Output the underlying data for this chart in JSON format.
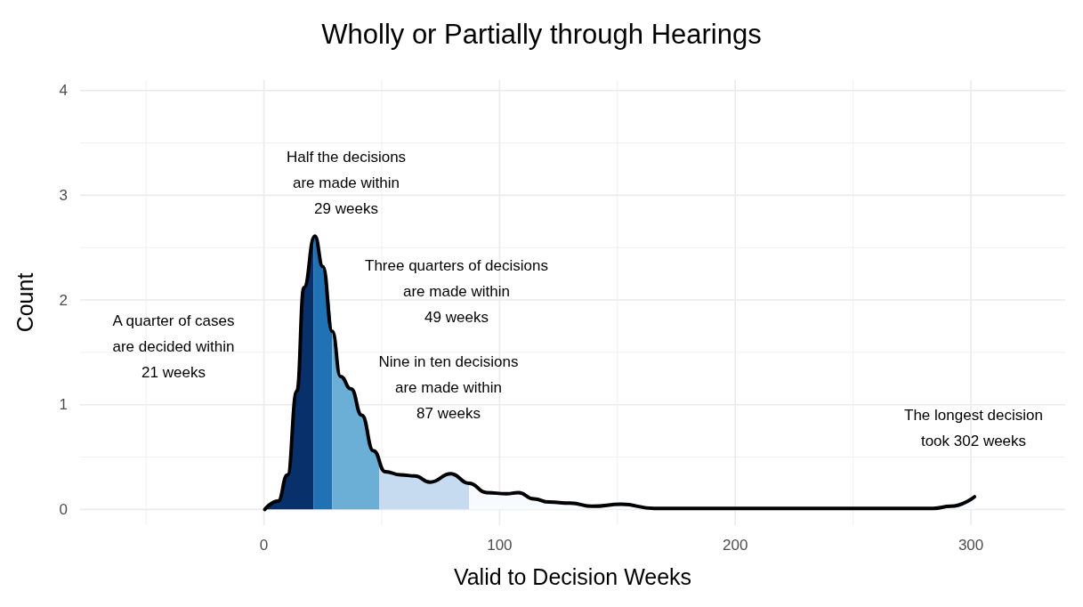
{
  "chart_data": {
    "type": "area",
    "title": "Wholly or Partially through Hearings",
    "xlabel": "Valid to Decision Weeks",
    "ylabel": "Count",
    "xlim": [
      -78,
      340
    ],
    "ylim": [
      -0.15,
      4.1
    ],
    "xticks": [
      0,
      100,
      200,
      300
    ],
    "yticks": [
      0,
      1,
      2,
      3,
      4
    ],
    "grid": true,
    "series": [
      {
        "color": "#08306b",
        "x": [
          0.4,
          6,
          10,
          14,
          17,
          21
        ],
        "values": [
          0,
          0.08,
          0.33,
          1.13,
          2.12,
          2.6
        ]
      },
      {
        "color": "#2171b5",
        "x": [
          21,
          21.6,
          25,
          29
        ],
        "values": [
          2.6,
          2.61,
          2.32,
          1.7
        ]
      },
      {
        "color": "#6baed6",
        "x": [
          29,
          32.5,
          37,
          41.5,
          46.5,
          49
        ],
        "values": [
          1.7,
          1.27,
          1.15,
          0.9,
          0.56,
          0.45
        ]
      },
      {
        "color": "#c6dbef",
        "x": [
          49,
          51.5,
          58,
          64,
          70.5,
          79.4,
          87
        ],
        "values": [
          0.45,
          0.36,
          0.33,
          0.32,
          0.26,
          0.34,
          0.25
        ]
      },
      {
        "color": "#f7fbff",
        "x": [
          87,
          94.5,
          103,
          108,
          114.5,
          121,
          130,
          139.5,
          151.6,
          165.6,
          198,
          284,
          291.5,
          301.5
        ],
        "values": [
          0.25,
          0.16,
          0.15,
          0.16,
          0.1,
          0.07,
          0.06,
          0.03,
          0.05,
          0.01,
          0.01,
          0.01,
          0.03,
          0.12
        ]
      },
      {
        "type": "line",
        "color": "#000000",
        "x": [
          0.4,
          6,
          10,
          14,
          17,
          21.6,
          25,
          29,
          32.5,
          37,
          41.5,
          46.5,
          51.5,
          58,
          64,
          70.5,
          79.4,
          87,
          94.5,
          103,
          108,
          114.5,
          121,
          130,
          139.5,
          151.6,
          165.6,
          198,
          284,
          291.5,
          301.5
        ],
        "values": [
          0,
          0.08,
          0.33,
          1.13,
          2.12,
          2.61,
          2.32,
          1.7,
          1.27,
          1.15,
          0.9,
          0.56,
          0.36,
          0.33,
          0.32,
          0.26,
          0.34,
          0.25,
          0.16,
          0.15,
          0.16,
          0.1,
          0.07,
          0.06,
          0.03,
          0.05,
          0.01,
          0.01,
          0.01,
          0.03,
          0.12
        ]
      }
    ],
    "annotations": [
      "A quarter of cases\nare decided within\n21 weeks",
      "Half the decisions\nare made within\n29 weeks",
      "Three quarters of decisions\nare made within\n49 weeks",
      "Nine in ten decisions\nare made within\n87 weeks",
      "The longest decision\ntook 302 weeks"
    ]
  }
}
